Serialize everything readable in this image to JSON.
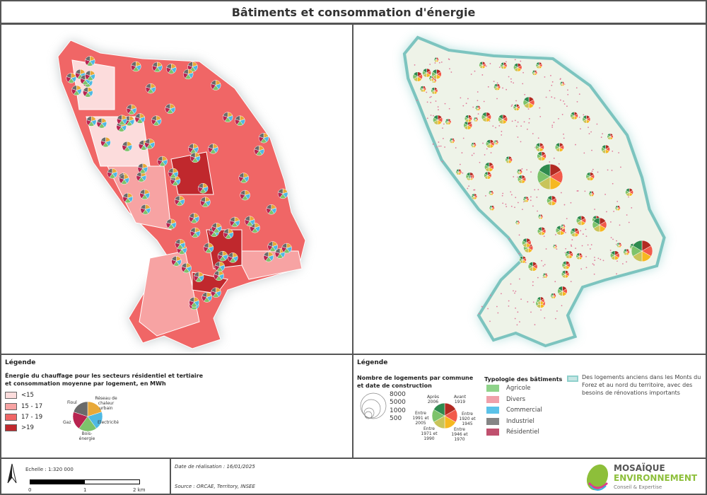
{
  "title": "Bâtiments et consommation d'énergie",
  "legend_left": {
    "heading": "Légende",
    "subtitle": "Énergie du chauffage pour les secteurs résidentiel et tertiaire et consommation moyenne par logement, en MWh",
    "classes": [
      {
        "label": "<15",
        "color": "#fcdcdc"
      },
      {
        "label": "15 - 17",
        "color": "#f7a3a3"
      },
      {
        "label": "17 - 19",
        "color": "#f06666"
      },
      {
        "label": ">19",
        "color": "#c0282d"
      }
    ],
    "pie": [
      {
        "label": "Réseau de chaleur urbain",
        "color": "#e8a93a"
      },
      {
        "label": "Electricité",
        "color": "#4fb9e3"
      },
      {
        "label": "Bois-énergie",
        "color": "#7dc36b"
      },
      {
        "label": "Gaz",
        "color": "#b82450"
      },
      {
        "label": "Fioul",
        "color": "#6a6a6a"
      }
    ]
  },
  "legend_right": {
    "heading": "Légende",
    "subtitle": "Nombre de logements par commune et date de construction",
    "sizes": [
      "8000",
      "5000",
      "1000",
      "500"
    ],
    "pie": [
      {
        "label": "Avant 1919",
        "color": "#b22a22"
      },
      {
        "label": "Entre 1920 et 1945",
        "color": "#f25a4a"
      },
      {
        "label": "Entre 1946 et 1970",
        "color": "#f6b820"
      },
      {
        "label": "Entre 1971 et 1990",
        "color": "#c8c45a"
      },
      {
        "label": "Entre 1991 et 2005",
        "color": "#7dc36b"
      },
      {
        "label": "Après 2006",
        "color": "#2e8a4e"
      }
    ],
    "typology_title": "Typologie des bâtiments",
    "typology": [
      {
        "label": "Agricole",
        "color": "#8fd38a"
      },
      {
        "label": "Divers",
        "color": "#f0a0aa"
      },
      {
        "label": "Commercial",
        "color": "#5bc2e8"
      },
      {
        "label": "Industriel",
        "color": "#858585"
      },
      {
        "label": "Résidentiel",
        "color": "#c0506e"
      }
    ],
    "zone_label": "Des logements anciens dans les Monts du Forez et au nord du territoire, avec des besoins de rénovations importants",
    "zone_color": "#8fd0cc"
  },
  "footer": {
    "scale_label": "Echelle :  1:320 000",
    "scale_ticks": [
      "0",
      "1",
      "2 km"
    ],
    "date": "Date de réalisation : 16/01/2025",
    "source": "Source : ORCAE, Territory, INSEE",
    "logo": {
      "line1": "MOSAÏQUE",
      "line2": "ENVIRONNEMENT",
      "line3": "Conseil & Expertise"
    }
  }
}
